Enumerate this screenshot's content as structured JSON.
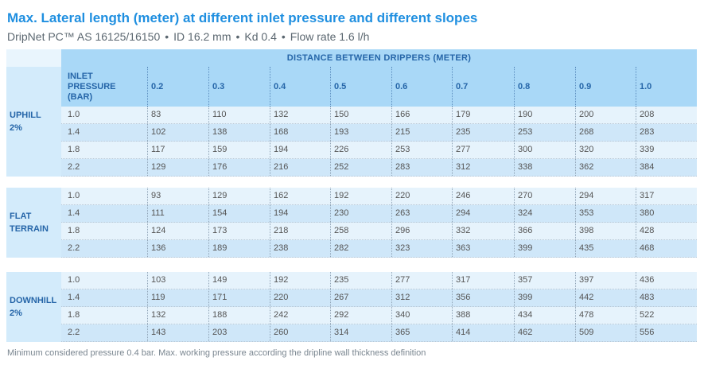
{
  "title": "Max. Lateral length (meter) at different inlet pressure and different slopes",
  "subtitle": [
    "DripNet PC™ AS 16125/16150",
    "ID 16.2 mm",
    "Kd 0.4",
    "Flow rate 1.6 l/h"
  ],
  "subtitle_separator": "•",
  "header": {
    "group": "DISTANCE BETWEEN DRIPPERS (METER)",
    "pressure": [
      "INLET",
      "PRESSURE",
      "(BAR)"
    ],
    "distances": [
      "0.2",
      "0.3",
      "0.4",
      "0.5",
      "0.6",
      "0.7",
      "0.8",
      "0.9",
      "1.0"
    ]
  },
  "sections": [
    {
      "label": [
        "UPHILL",
        "2%"
      ],
      "rows": [
        {
          "pressure": "1.0",
          "values": [
            "83",
            "110",
            "132",
            "150",
            "166",
            "179",
            "190",
            "200",
            "208"
          ]
        },
        {
          "pressure": "1.4",
          "values": [
            "102",
            "138",
            "168",
            "193",
            "215",
            "235",
            "253",
            "268",
            "283"
          ]
        },
        {
          "pressure": "1.8",
          "values": [
            "117",
            "159",
            "194",
            "226",
            "253",
            "277",
            "300",
            "320",
            "339"
          ]
        },
        {
          "pressure": "2.2",
          "values": [
            "129",
            "176",
            "216",
            "252",
            "283",
            "312",
            "338",
            "362",
            "384"
          ]
        }
      ]
    },
    {
      "label": [
        "FLAT",
        "TERRAIN"
      ],
      "rows": [
        {
          "pressure": "1.0",
          "values": [
            "93",
            "129",
            "162",
            "192",
            "220",
            "246",
            "270",
            "294",
            "317"
          ]
        },
        {
          "pressure": "1.4",
          "values": [
            "111",
            "154",
            "194",
            "230",
            "263",
            "294",
            "324",
            "353",
            "380"
          ]
        },
        {
          "pressure": "1.8",
          "values": [
            "124",
            "173",
            "218",
            "258",
            "296",
            "332",
            "366",
            "398",
            "428"
          ]
        },
        {
          "pressure": "2.2",
          "values": [
            "136",
            "189",
            "238",
            "282",
            "323",
            "363",
            "399",
            "435",
            "468"
          ]
        }
      ]
    },
    {
      "label": [
        "DOWNHILL",
        "2%"
      ],
      "rows": [
        {
          "pressure": "1.0",
          "values": [
            "103",
            "149",
            "192",
            "235",
            "277",
            "317",
            "357",
            "397",
            "436"
          ]
        },
        {
          "pressure": "1.4",
          "values": [
            "119",
            "171",
            "220",
            "267",
            "312",
            "356",
            "399",
            "442",
            "483"
          ]
        },
        {
          "pressure": "1.8",
          "values": [
            "132",
            "188",
            "242",
            "292",
            "340",
            "388",
            "434",
            "478",
            "522"
          ]
        },
        {
          "pressure": "2.2",
          "values": [
            "143",
            "203",
            "260",
            "314",
            "365",
            "414",
            "462",
            "509",
            "556"
          ]
        }
      ]
    }
  ],
  "footnote": "Minimum considered pressure 0.4 bar. Max. working pressure according the dripline wall thickness definition",
  "colors": {
    "title": "#1f8fe0",
    "header": "#a9d8f7",
    "header_text": "#2565a8",
    "row_light": "#e6f3fc",
    "row_dark": "#cfe7f9"
  }
}
